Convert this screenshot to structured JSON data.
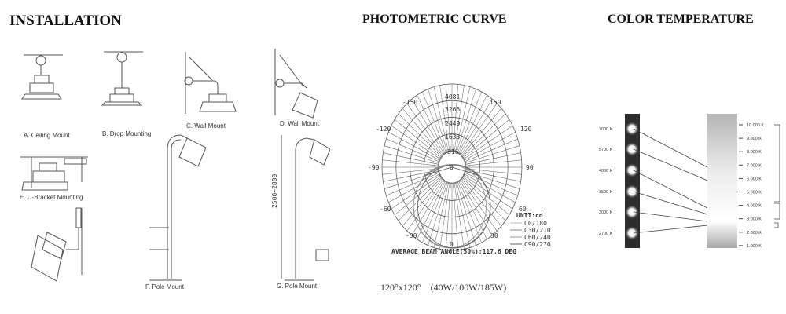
{
  "sections": {
    "installation": "INSTALLATION",
    "photometric": "PHOTOMETRIC CURVE",
    "color_temperature": "COLOR TEMPERATURE"
  },
  "installation": {
    "captions": {
      "a": "A. Ceiling Mount",
      "b": "B. Drop Mounting",
      "c": "C. Wall Mount",
      "d": "D. Wall Mount",
      "e": "E. U-Bracket Mounting",
      "f": "F. Pole Mount",
      "g": "G. Pole Mount"
    }
  },
  "photometric": {
    "ring_values": [
      "816",
      "1633",
      "2449",
      "3265",
      "4081"
    ],
    "center_label": "0",
    "angle_labels": {
      "a_m150": "-150",
      "a_150": "150",
      "a_m120": "-120",
      "a_120": "120",
      "a_m90": "-90",
      "a_90": "90",
      "a_m60": "-60",
      "a_60": "60",
      "a_m30": "-30",
      "a_30": "30",
      "a_0": "0"
    },
    "unit": "UNIT:cd",
    "legend": [
      "C0/180",
      "C30/210",
      "C60/240",
      "C90/270"
    ],
    "beam_angle": "AVERAGE BEAM ANGLE(50%):117.6 DEG",
    "footer_angle": "120°x120°",
    "footer_power": "(40W/100W/185W)"
  },
  "color_temperature": {
    "left_labels": [
      "7000 K",
      "5700 K",
      "4000 K",
      "3500 K",
      "3000 K",
      "2700 K"
    ],
    "scale_labels": [
      "10.000 K",
      "9.000 K",
      "8.000 K",
      "7.000 K",
      "6.000 K",
      "5.000 K",
      "4.000 K",
      "3.000 K",
      "2.000 K",
      "1.000 K"
    ]
  }
}
